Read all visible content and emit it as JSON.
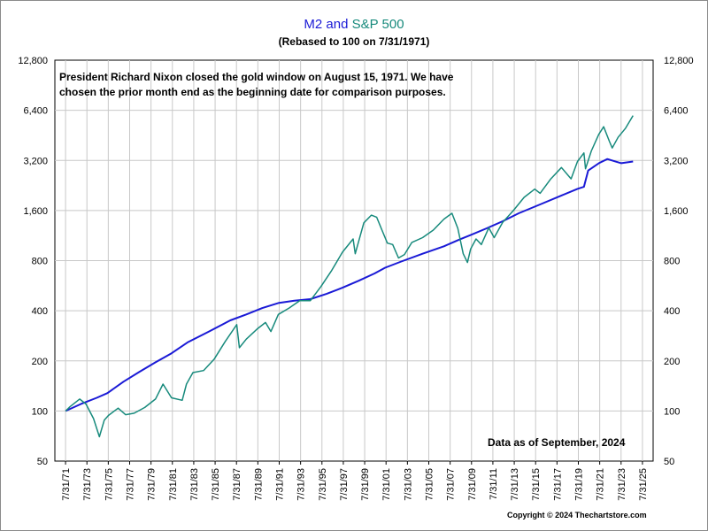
{
  "title": {
    "m2_part": "M2",
    "and_part": " and ",
    "sp_part": "S&P 500"
  },
  "subtitle": "(Rebased to 100 on 7/31/1971)",
  "annotation": {
    "line1": "President Richard Nixon closed the gold window on August 15, 1971.  We have",
    "line2": "chosen the prior month end as the beginning date for comparison purposes."
  },
  "data_as_of": "Data as of September, 2024",
  "copyright": "Copyright © 2024 Thechartstore.com",
  "colors": {
    "m2": "#1a1ad6",
    "sp500": "#178a7c",
    "grid": "#c8c8c8",
    "axis": "#000000",
    "title_text": "#1a1ad6",
    "sp_title_text": "#178a7c"
  },
  "chart_data": {
    "type": "line",
    "title": "M2 and S&P 500",
    "subtitle": "(Rebased to 100 on 7/31/1971)",
    "xlabel": "",
    "ylabel": "",
    "y_scale": "log2",
    "ylim": [
      50,
      12800
    ],
    "y_ticks": [
      "50",
      "100",
      "200",
      "400",
      "800",
      "1,600",
      "3,200",
      "6,400",
      "12,800"
    ],
    "y_tick_values": [
      50,
      100,
      200,
      400,
      800,
      1600,
      3200,
      6400,
      12800
    ],
    "x_ticks": [
      "7/31/71",
      "7/31/73",
      "7/31/75",
      "7/31/77",
      "7/31/79",
      "7/31/81",
      "7/31/83",
      "7/31/85",
      "7/31/87",
      "7/31/89",
      "7/31/91",
      "7/31/93",
      "7/31/95",
      "7/31/97",
      "7/31/99",
      "7/31/01",
      "7/31/03",
      "7/31/05",
      "7/31/07",
      "7/31/09",
      "7/31/11",
      "7/31/13",
      "7/31/15",
      "7/31/17",
      "7/31/19",
      "7/31/21",
      "7/31/23",
      "7/31/25"
    ],
    "x_tick_years": [
      1971.58,
      1973.58,
      1975.58,
      1977.58,
      1979.58,
      1981.58,
      1983.58,
      1985.58,
      1987.58,
      1989.58,
      1991.58,
      1993.58,
      1995.58,
      1997.58,
      1999.58,
      2001.58,
      2003.58,
      2005.58,
      2007.58,
      2009.58,
      2011.58,
      2013.58,
      2015.58,
      2017.58,
      2019.58,
      2021.58,
      2023.58,
      2025.58
    ],
    "grid": true,
    "series": [
      {
        "name": "M2",
        "color": "#1a1ad6",
        "x": [
          1971.58,
          1973,
          1974.5,
          1975.5,
          1977,
          1978.5,
          1980,
          1981.5,
          1983,
          1985,
          1987,
          1988.5,
          1990,
          1991.5,
          1993,
          1994.5,
          1996,
          1997.5,
          1999,
          2000.5,
          2001.5,
          2003,
          2005,
          2007,
          2008.5,
          2009.5,
          2011,
          2012.5,
          2014,
          2016,
          2018,
          2019.5,
          2020.1,
          2020.5,
          2021.5,
          2022.3,
          2023,
          2023.6,
          2024.7
        ],
        "values": [
          100,
          110,
          120,
          128,
          150,
          172,
          196,
          222,
          258,
          300,
          350,
          380,
          415,
          445,
          460,
          470,
          505,
          550,
          605,
          670,
          725,
          790,
          880,
          975,
          1075,
          1140,
          1250,
          1380,
          1540,
          1740,
          1970,
          2160,
          2220,
          2780,
          3080,
          3260,
          3160,
          3080,
          3150
        ]
      },
      {
        "name": "S&P 500",
        "color": "#178a7c",
        "x": [
          1971.58,
          1972,
          1972.9,
          1973.5,
          1974.2,
          1974.75,
          1975.2,
          1975.6,
          1976.5,
          1977.2,
          1978,
          1979,
          1980,
          1980.7,
          1981.5,
          1982.5,
          1982.9,
          1983.5,
          1984.5,
          1985.5,
          1986.5,
          1987.6,
          1987.85,
          1988.5,
          1989.5,
          1990.3,
          1990.8,
          1991.5,
          1992.5,
          1993.5,
          1994.5,
          1995.5,
          1996.5,
          1997.5,
          1998.5,
          1998.7,
          1999.5,
          2000.2,
          2000.7,
          2001.2,
          2001.7,
          2002.2,
          2002.75,
          2003.3,
          2004,
          2005,
          2006,
          2007,
          2007.75,
          2008.3,
          2008.8,
          2009.2,
          2009.5,
          2010,
          2010.5,
          2011.2,
          2011.7,
          2012.5,
          2013.5,
          2014.5,
          2015.5,
          2016,
          2017,
          2018,
          2018.9,
          2019.5,
          2020.1,
          2020.25,
          2020.8,
          2021.5,
          2021.95,
          2022.5,
          2022.75,
          2023.3,
          2024,
          2024.7
        ],
        "values": [
          100,
          106,
          118,
          110,
          90,
          70,
          88,
          94,
          104,
          95,
          97,
          105,
          118,
          145,
          120,
          116,
          145,
          170,
          175,
          205,
          260,
          330,
          240,
          270,
          310,
          340,
          300,
          380,
          415,
          460,
          460,
          560,
          700,
          900,
          1080,
          880,
          1350,
          1500,
          1460,
          1220,
          1020,
          1000,
          830,
          870,
          1030,
          1100,
          1220,
          1420,
          1540,
          1250,
          880,
          780,
          940,
          1080,
          1000,
          1260,
          1100,
          1360,
          1600,
          1920,
          2150,
          2030,
          2480,
          2900,
          2480,
          3150,
          3550,
          2850,
          3650,
          4600,
          5100,
          4150,
          3800,
          4400,
          5000,
          5950
        ]
      }
    ]
  }
}
